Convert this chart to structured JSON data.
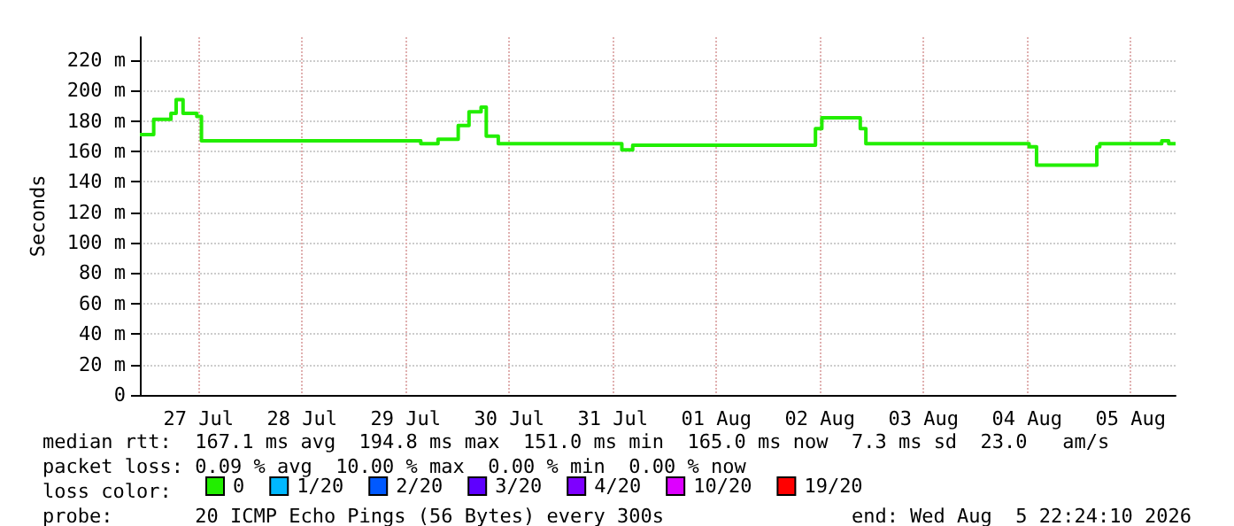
{
  "chart_data": {
    "type": "step",
    "ylabel": "Seconds",
    "x": [
      "2026-07-26T22:24",
      "2026-07-27T01:36",
      "2026-07-27T05:36",
      "2026-07-27T06:48",
      "2026-07-27T08:24",
      "2026-07-27T11:35",
      "2026-07-27T12:40",
      "2026-07-29T15:30",
      "2026-07-29T19:29",
      "2026-07-30T00:10",
      "2026-07-30T02:40",
      "2026-07-30T05:28",
      "2026-07-30T06:40",
      "2026-07-30T09:27",
      "2026-07-31T14:05",
      "2026-07-31T16:36",
      "2026-08-02T10:57",
      "2026-08-02T12:26",
      "2026-08-02T21:20",
      "2026-08-02T22:38",
      "2026-08-04T12:27",
      "2026-08-04T14:11",
      "2026-08-05T04:09",
      "2026-08-05T04:50",
      "2026-08-05T19:12",
      "2026-08-05T20:48",
      "2026-08-05T22:24"
    ],
    "series": [
      {
        "name": "0",
        "color": "#22ee00",
        "values": [
          171,
          181,
          185,
          194,
          185,
          183,
          167,
          165,
          168,
          177,
          186,
          189,
          170,
          165,
          161,
          164,
          175,
          182,
          175,
          165,
          163,
          151,
          163,
          165,
          167,
          165,
          165
        ]
      },
      {
        "name": "1/20",
        "color": "#00b8ff",
        "values": [
          null,
          null,
          null,
          null,
          null,
          null,
          null,
          null,
          null,
          null,
          null,
          null,
          null,
          null,
          null,
          null,
          null,
          null,
          null,
          null,
          null,
          null,
          null,
          null,
          null,
          null,
          null
        ]
      },
      {
        "name": "2/20",
        "color": "#0059ff",
        "values": [
          null,
          null,
          null,
          null,
          null,
          null,
          null,
          null,
          null,
          null,
          null,
          null,
          null,
          null,
          null,
          null,
          null,
          null,
          null,
          null,
          null,
          null,
          null,
          null,
          null,
          null,
          null
        ]
      },
      {
        "name": "3/20",
        "color": "#5e00ff",
        "values": [
          null,
          null,
          null,
          null,
          null,
          null,
          null,
          null,
          null,
          null,
          null,
          null,
          null,
          null,
          null,
          null,
          null,
          null,
          null,
          null,
          null,
          null,
          null,
          null,
          null,
          null,
          null
        ]
      },
      {
        "name": "4/20",
        "color": "#7e00ff",
        "values": [
          null,
          null,
          null,
          null,
          null,
          null,
          null,
          null,
          null,
          null,
          null,
          null,
          null,
          null,
          null,
          null,
          null,
          null,
          null,
          null,
          null,
          null,
          null,
          null,
          null,
          null,
          null
        ]
      },
      {
        "name": "10/20",
        "color": "#dd00ff",
        "values": [
          null,
          null,
          null,
          null,
          null,
          null,
          null,
          null,
          null,
          null,
          null,
          null,
          null,
          null,
          null,
          null,
          null,
          null,
          null,
          null,
          null,
          null,
          null,
          null,
          null,
          null,
          null
        ]
      },
      {
        "name": "19/20",
        "color": "#ff0000",
        "values": [
          null,
          null,
          null,
          null,
          null,
          null,
          null,
          null,
          null,
          null,
          null,
          null,
          null,
          null,
          null,
          null,
          null,
          null,
          null,
          null,
          null,
          null,
          null,
          null,
          null,
          null,
          null
        ]
      }
    ],
    "xlim": [
      "2026-07-26T22:24",
      "2026-08-05T22:24"
    ],
    "xticks": [
      {
        "value": "2026-07-27T12:00",
        "label": "27 Jul"
      },
      {
        "value": "2026-07-28T12:00",
        "label": "28 Jul"
      },
      {
        "value": "2026-07-29T12:00",
        "label": "29 Jul"
      },
      {
        "value": "2026-07-30T12:00",
        "label": "30 Jul"
      },
      {
        "value": "2026-07-31T12:00",
        "label": "31 Jul"
      },
      {
        "value": "2026-08-01T12:00",
        "label": "01 Aug"
      },
      {
        "value": "2026-08-02T12:00",
        "label": "02 Aug"
      },
      {
        "value": "2026-08-03T12:00",
        "label": "03 Aug"
      },
      {
        "value": "2026-08-04T12:00",
        "label": "04 Aug"
      },
      {
        "value": "2026-08-05T12:00",
        "label": "05 Aug"
      }
    ],
    "ylim": [
      0,
      235
    ],
    "yticks": [
      0,
      {
        "value": 20,
        "label": "20 m"
      },
      {
        "value": 40,
        "label": "40 m"
      },
      {
        "value": 60,
        "label": "60 m"
      },
      {
        "value": 80,
        "label": "80 m"
      },
      {
        "value": 100,
        "label": "100 m"
      },
      {
        "value": 120,
        "label": "120 m"
      },
      {
        "value": 140,
        "label": "140 m"
      },
      {
        "value": 160,
        "label": "160 m"
      },
      {
        "value": 180,
        "label": "180 m"
      },
      {
        "value": 200,
        "label": "200 m"
      },
      {
        "value": 220,
        "label": "220 m"
      }
    ],
    "grid": true,
    "legend": "bottom left",
    "annotations": [
      "median rtt:  167.1 ms avg  194.8 ms max  151.0 ms min  165.0 ms now  7.3 ms sd  23.0   am/s",
      "packet loss: 0.09 % avg  10.00 % max  0.00 % min  0.00 % now",
      "loss color:",
      "probe:       20 ICMP Echo Pings (56 Bytes) every 300s",
      "end: Wed Aug  5 22:24:10 2026"
    ]
  }
}
